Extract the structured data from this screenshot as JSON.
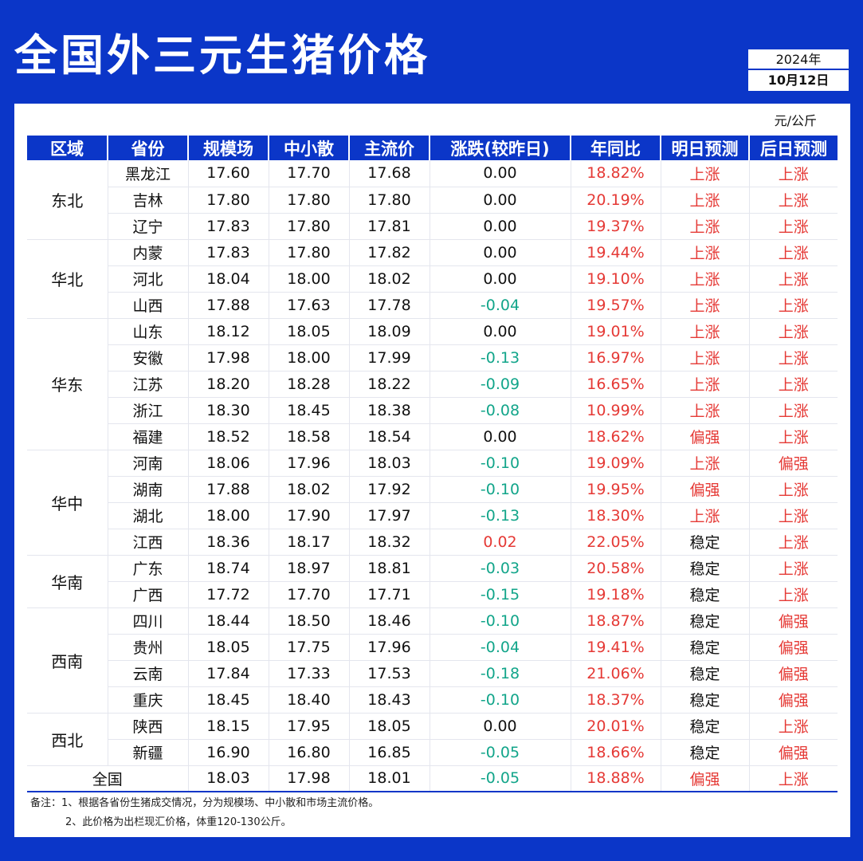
{
  "title": "全国外三元生猪价格",
  "date": {
    "year": "2024年",
    "day": "10月12日"
  },
  "unit": "元/公斤",
  "colors": {
    "brand": "#0b36c8",
    "up": "#e53935",
    "down": "#12a58a"
  },
  "headers": [
    "区域",
    "省份",
    "规模场",
    "中小散",
    "主流价",
    "涨跌(较昨日)",
    "年同比",
    "明日预测",
    "后日预测"
  ],
  "regions": [
    {
      "name": "东北",
      "rows": [
        {
          "province": "黑龙江",
          "large": "17.60",
          "small": "17.70",
          "main": "17.68",
          "change": "0.00",
          "yoy": "18.82%",
          "tomorrow": "上涨",
          "after": "上涨"
        },
        {
          "province": "吉林",
          "large": "17.80",
          "small": "17.80",
          "main": "17.80",
          "change": "0.00",
          "yoy": "20.19%",
          "tomorrow": "上涨",
          "after": "上涨"
        },
        {
          "province": "辽宁",
          "large": "17.83",
          "small": "17.80",
          "main": "17.81",
          "change": "0.00",
          "yoy": "19.37%",
          "tomorrow": "上涨",
          "after": "上涨"
        }
      ]
    },
    {
      "name": "华北",
      "rows": [
        {
          "province": "内蒙",
          "large": "17.83",
          "small": "17.80",
          "main": "17.82",
          "change": "0.00",
          "yoy": "19.44%",
          "tomorrow": "上涨",
          "after": "上涨"
        },
        {
          "province": "河北",
          "large": "18.04",
          "small": "18.00",
          "main": "18.02",
          "change": "0.00",
          "yoy": "19.10%",
          "tomorrow": "上涨",
          "after": "上涨"
        },
        {
          "province": "山西",
          "large": "17.88",
          "small": "17.63",
          "main": "17.78",
          "change": "-0.04",
          "yoy": "19.57%",
          "tomorrow": "上涨",
          "after": "上涨"
        }
      ]
    },
    {
      "name": "华东",
      "rows": [
        {
          "province": "山东",
          "large": "18.12",
          "small": "18.05",
          "main": "18.09",
          "change": "0.00",
          "yoy": "19.01%",
          "tomorrow": "上涨",
          "after": "上涨"
        },
        {
          "province": "安徽",
          "large": "17.98",
          "small": "18.00",
          "main": "17.99",
          "change": "-0.13",
          "yoy": "16.97%",
          "tomorrow": "上涨",
          "after": "上涨"
        },
        {
          "province": "江苏",
          "large": "18.20",
          "small": "18.28",
          "main": "18.22",
          "change": "-0.09",
          "yoy": "16.65%",
          "tomorrow": "上涨",
          "after": "上涨"
        },
        {
          "province": "浙江",
          "large": "18.30",
          "small": "18.45",
          "main": "18.38",
          "change": "-0.08",
          "yoy": "10.99%",
          "tomorrow": "上涨",
          "after": "上涨"
        },
        {
          "province": "福建",
          "large": "18.52",
          "small": "18.58",
          "main": "18.54",
          "change": "0.00",
          "yoy": "18.62%",
          "tomorrow": "偏强",
          "after": "上涨"
        }
      ]
    },
    {
      "name": "华中",
      "rows": [
        {
          "province": "河南",
          "large": "18.06",
          "small": "17.96",
          "main": "18.03",
          "change": "-0.10",
          "yoy": "19.09%",
          "tomorrow": "上涨",
          "after": "偏强"
        },
        {
          "province": "湖南",
          "large": "17.88",
          "small": "18.02",
          "main": "17.92",
          "change": "-0.10",
          "yoy": "19.95%",
          "tomorrow": "偏强",
          "after": "上涨"
        },
        {
          "province": "湖北",
          "large": "18.00",
          "small": "17.90",
          "main": "17.97",
          "change": "-0.13",
          "yoy": "18.30%",
          "tomorrow": "上涨",
          "after": "上涨"
        },
        {
          "province": "江西",
          "large": "18.36",
          "small": "18.17",
          "main": "18.32",
          "change": "0.02",
          "yoy": "22.05%",
          "tomorrow": "稳定",
          "after": "上涨"
        }
      ]
    },
    {
      "name": "华南",
      "rows": [
        {
          "province": "广东",
          "large": "18.74",
          "small": "18.97",
          "main": "18.81",
          "change": "-0.03",
          "yoy": "20.58%",
          "tomorrow": "稳定",
          "after": "上涨"
        },
        {
          "province": "广西",
          "large": "17.72",
          "small": "17.70",
          "main": "17.71",
          "change": "-0.15",
          "yoy": "19.18%",
          "tomorrow": "稳定",
          "after": "上涨"
        }
      ]
    },
    {
      "name": "西南",
      "rows": [
        {
          "province": "四川",
          "large": "18.44",
          "small": "18.50",
          "main": "18.46",
          "change": "-0.10",
          "yoy": "18.87%",
          "tomorrow": "稳定",
          "after": "偏强"
        },
        {
          "province": "贵州",
          "large": "18.05",
          "small": "17.75",
          "main": "17.96",
          "change": "-0.04",
          "yoy": "19.41%",
          "tomorrow": "稳定",
          "after": "偏强"
        },
        {
          "province": "云南",
          "large": "17.84",
          "small": "17.33",
          "main": "17.53",
          "change": "-0.18",
          "yoy": "21.06%",
          "tomorrow": "稳定",
          "after": "偏强"
        },
        {
          "province": "重庆",
          "large": "18.45",
          "small": "18.40",
          "main": "18.43",
          "change": "-0.10",
          "yoy": "18.37%",
          "tomorrow": "稳定",
          "after": "偏强"
        }
      ]
    },
    {
      "name": "西北",
      "rows": [
        {
          "province": "陕西",
          "large": "18.15",
          "small": "17.95",
          "main": "18.05",
          "change": "0.00",
          "yoy": "20.01%",
          "tomorrow": "稳定",
          "after": "上涨"
        },
        {
          "province": "新疆",
          "large": "16.90",
          "small": "16.80",
          "main": "16.85",
          "change": "-0.05",
          "yoy": "18.66%",
          "tomorrow": "稳定",
          "after": "偏强"
        }
      ]
    }
  ],
  "total": {
    "label": "全国",
    "large": "18.03",
    "small": "17.98",
    "main": "18.01",
    "change": "-0.05",
    "yoy": "18.88%",
    "tomorrow": "偏强",
    "after": "上涨"
  },
  "notes": [
    "备注：1、根据各省份生猪成交情况，分为规模场、中小散和市场主流价格。",
    "2、此价格为出栏现汇价格，体重120-130公斤。"
  ]
}
